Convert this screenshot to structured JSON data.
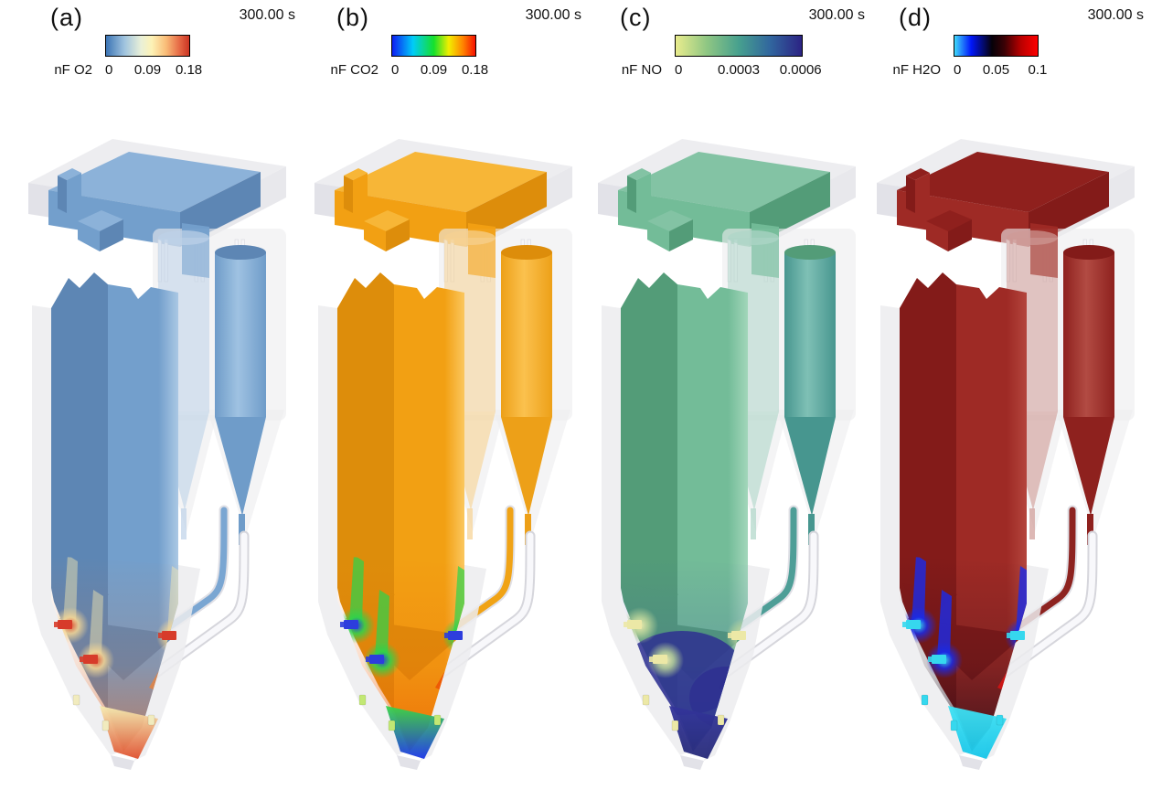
{
  "figure": {
    "background": "#ffffff",
    "panels": [
      {
        "id": "a",
        "label": "(a)",
        "time": "300.00 s",
        "species": "nF O2",
        "ticks": [
          "0",
          "0.09",
          "0.18"
        ],
        "colorbar_stops": [
          [
            "#3c74b5",
            0
          ],
          [
            "#9fc3de",
            0.22
          ],
          [
            "#e9f0d8",
            0.42
          ],
          [
            "#fdf2b6",
            0.55
          ],
          [
            "#f9bd78",
            0.72
          ],
          [
            "#e66a46",
            0.88
          ],
          [
            "#cb3422",
            1
          ]
        ],
        "render": {
          "shell": "#ececef",
          "shellDark": "#dfdfe5",
          "top": "#8cb2d9",
          "front": "#739fcc",
          "side": "#5d86b4",
          "edge": "#aac8e4",
          "barrel": "#6f9cc9",
          "barrelLight": "#9fc2e2",
          "overlay": "#bdd2e8",
          "pipe": "#7aa6d2",
          "bottom": {
            "nozzle": "#d73b2a",
            "plumeCore": "#de4a2c",
            "plumeMid": "#f5d795",
            "small": "#f1ebbe",
            "band0": "#f6edb2",
            "band1": "#df502e",
            "glow": "#d2703e",
            "blob": "",
            "streak": "#f6e8b0",
            "streakOp": 0.45,
            "accent": "#e8823c"
          }
        }
      },
      {
        "id": "b",
        "label": "(b)",
        "time": "300.00 s",
        "species": "nF CO2",
        "ticks": [
          "0",
          "0.09",
          "0.18"
        ],
        "colorbar_stops": [
          [
            "#0d1ef2",
            0
          ],
          [
            "#00ccf8",
            0.25
          ],
          [
            "#15e02c",
            0.5
          ],
          [
            "#f2ee00",
            0.68
          ],
          [
            "#ff8400",
            0.85
          ],
          [
            "#f51000",
            1
          ]
        ],
        "render": {
          "shell": "#ececef",
          "shellDark": "#dfdfe5",
          "top": "#f7b637",
          "front": "#f2a013",
          "side": "#dd8d0b",
          "edge": "#fbc75e",
          "barrel": "#eda018",
          "barrelLight": "#fbc14e",
          "overlay": "#f6d291",
          "pipe": "#f0a316",
          "bottom": {
            "nozzle": "#2d3ddd",
            "plumeCore": "#2438e8",
            "plumeMid": "#2bd44c",
            "small": "#c2e874",
            "band0": "#3ad546",
            "band1": "#1a34e8",
            "glow": "#ec5f06",
            "blob": "",
            "streak": "#2bd44c",
            "streakOp": 0.7,
            "accent": "#ee4e02"
          }
        }
      },
      {
        "id": "c",
        "label": "(c)",
        "time": "300.00 s",
        "species": "nF NO",
        "ticks": [
          "0",
          "0.0003",
          "0.0006"
        ],
        "colorbar_stops": [
          [
            "#e9ec8d",
            0
          ],
          [
            "#8ec683",
            0.25
          ],
          [
            "#47a08e",
            0.5
          ],
          [
            "#31669e",
            0.75
          ],
          [
            "#2c2384",
            1
          ]
        ],
        "render": {
          "shell": "#ececef",
          "shellDark": "#dfdfe5",
          "top": "#83c3a4",
          "front": "#73bc98",
          "side": "#539c78",
          "edge": "#a2d6ba",
          "barrel": "#47968f",
          "barrelLight": "#7fc0b5",
          "overlay": "#aed5c8",
          "pipe": "#4e9e97",
          "bottom": {
            "nozzle": "#ece8a6",
            "plumeCore": "#f0ecae",
            "plumeMid": "#b9d49a",
            "small": "#ece8a6",
            "band0": "#33349b",
            "band1": "#262a78",
            "glow": "#3c4ba2",
            "blob": "#2e3090",
            "streak": "",
            "streakOp": 0,
            "accent": "#2e3090"
          }
        }
      },
      {
        "id": "d",
        "label": "(d)",
        "time": "300.00 s",
        "species": "nF H2O",
        "ticks": [
          "0",
          "0.05",
          "0.1"
        ],
        "colorbar_stops": [
          [
            "#3fd9fa",
            0
          ],
          [
            "#0016fa",
            0.2
          ],
          [
            "#060109",
            0.45
          ],
          [
            "#3a0105",
            0.6
          ],
          [
            "#ba0000",
            0.8
          ],
          [
            "#fe0000",
            1
          ]
        ],
        "render": {
          "shell": "#ececef",
          "shellDark": "#dfdfe5",
          "top": "#8f201d",
          "front": "#9e2a25",
          "side": "#831b19",
          "edge": "#b4453d",
          "barrel": "#8e211e",
          "barrelLight": "#b24b43",
          "overlay": "#cf9a95",
          "pipe": "#8d2320",
          "bottom": {
            "nozzle": "#36d8ee",
            "plumeCore": "#3adef0",
            "plumeMid": "#1a2ae8",
            "small": "#36d8ee",
            "band0": "#3fe2f4",
            "band1": "#16c5e8",
            "glow": "#200a18",
            "blob": "",
            "streak": "#1a2ae8",
            "streakOp": 0.8,
            "accent": "#e01313"
          }
        }
      }
    ]
  },
  "chart_data": [
    {
      "type": "heatmap",
      "subfigure": "(a)",
      "variable": "nF O2",
      "time": "300.00 s",
      "range": [
        0,
        0.18
      ],
      "ticks": [
        0,
        0.09,
        0.18
      ],
      "colormap": "light blue - cream - red (diverging)",
      "legend_position": "top",
      "notes": "3D CFD surface rendering of circulating fluidized bed reactor; body mostly ~low O2 (blue), high-O2 red plumes at bottom air/fuel injection nozzles"
    },
    {
      "type": "heatmap",
      "subfigure": "(b)",
      "variable": "nF CO2",
      "time": "300.00 s",
      "range": [
        0,
        0.18
      ],
      "ticks": [
        0,
        0.09,
        0.18
      ],
      "colormap": "rainbow blue-cyan-green-yellow-red",
      "legend_position": "top",
      "notes": "body mostly high CO2 (orange/red), low-CO2 blue/green plumes at bottom injection nozzles"
    },
    {
      "type": "heatmap",
      "subfigure": "(c)",
      "variable": "nF NO",
      "time": "300.00 s",
      "range": [
        0,
        0.0006
      ],
      "ticks": [
        0,
        0.0003,
        0.0006
      ],
      "colormap": "yellow-green - teal - navy",
      "legend_position": "top",
      "notes": "body mid-range NO (teal green), high-NO navy zones in bottom hopper, near-zero pale yellow at nozzles"
    },
    {
      "type": "heatmap",
      "subfigure": "(d)",
      "variable": "nF H2O",
      "time": "300.00 s",
      "range": [
        0,
        0.1
      ],
      "ticks": [
        0,
        0.05,
        0.1
      ],
      "colormap": "cyan - blue - black - dark red - red",
      "legend_position": "top",
      "notes": "body high H2O (dark red), dry cyan/blue inflow plumes at bottom nozzles"
    }
  ]
}
